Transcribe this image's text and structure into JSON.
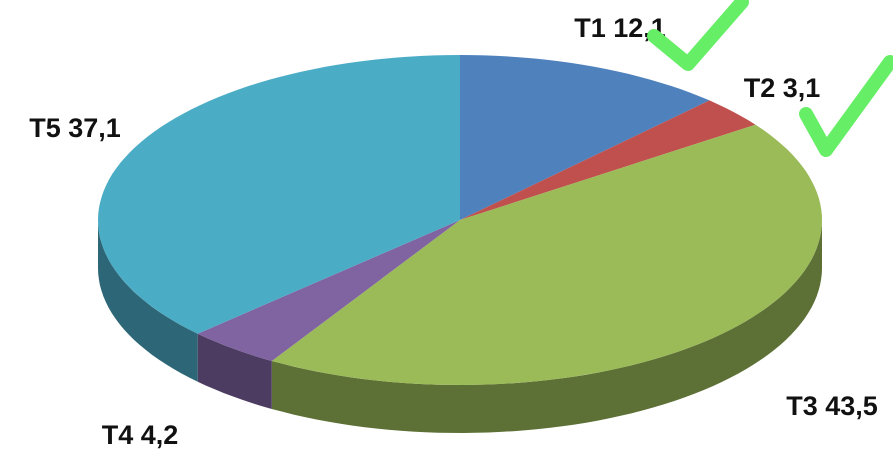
{
  "chart_data": {
    "type": "pie",
    "categories": [
      "T1",
      "T2",
      "T3",
      "T4",
      "T5"
    ],
    "values": [
      12.1,
      3.1,
      43.5,
      4.2,
      37.1
    ],
    "value_labels": [
      "12,1",
      "3,1",
      "43,5",
      "4,2",
      "37,1"
    ],
    "colors": [
      "#4f81bd",
      "#c0504d",
      "#9bbb59",
      "#8064a2",
      "#4bacc6"
    ]
  }
}
